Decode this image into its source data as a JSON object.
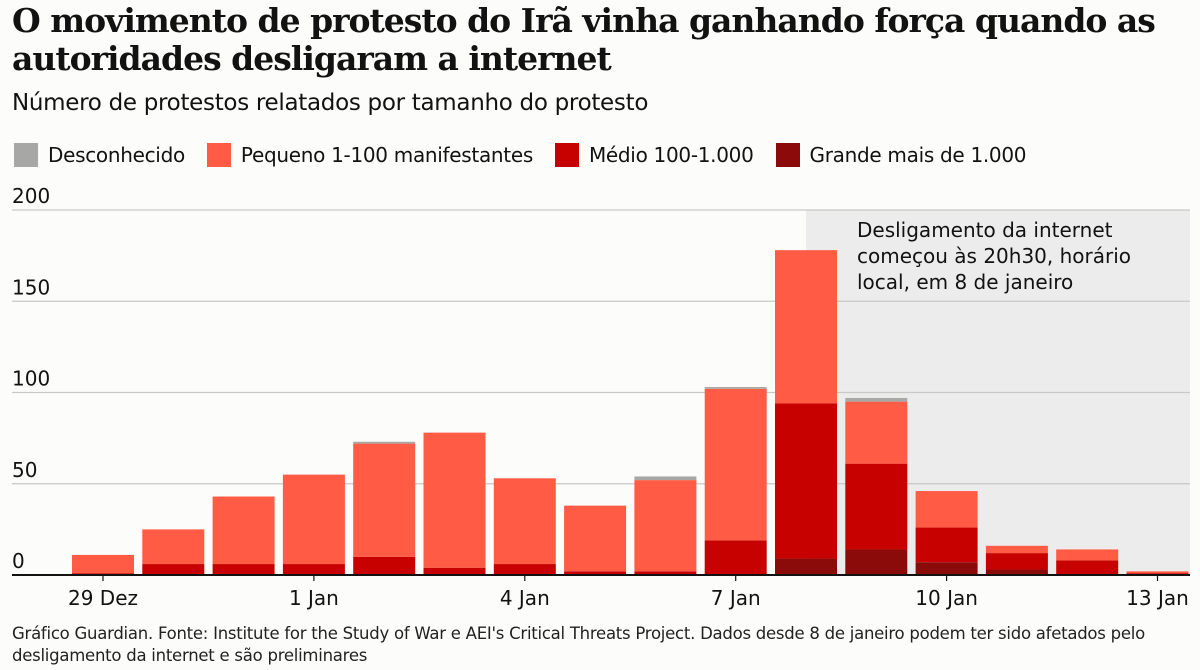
{
  "header": {
    "title": "O movimento de protesto do Irã vinha ganhando força quando as autoridades desligaram a internet",
    "subtitle": "Número de protestos relatados por tamanho do protesto"
  },
  "legend": [
    {
      "key": "desconhecido",
      "label": "Desconhecido",
      "color": "#a7a7a5"
    },
    {
      "key": "pequeno",
      "label": "Pequeno 1-100 manifestantes",
      "color": "#ff5b45"
    },
    {
      "key": "medio",
      "label": "Médio 100-1.000",
      "color": "#c70000"
    },
    {
      "key": "grande",
      "label": "Grande mais de 1.000",
      "color": "#8b0a0a"
    }
  ],
  "annotation": {
    "lines": [
      "Desligamento da internet",
      "começou às 20h30, horário",
      "local, em 8 de janeiro"
    ],
    "shade_color": "#ececec",
    "shade_start_day_index": 10.5
  },
  "source": "Gráfico Guardian. Fonte: Institute for the Study of War e AEI's Critical Threats Project. Dados desde 8 de janeiro podem ter sido afetados pelo desligamento da internet e são preliminares",
  "chart_data": {
    "type": "bar",
    "stacked": true,
    "title": "O movimento de protesto do Irã vinha ganhando força quando as autoridades desligaram a internet",
    "subtitle": "Número de protestos relatados por tamanho do protesto",
    "xlabel": "",
    "ylabel": "",
    "ylim": [
      0,
      200
    ],
    "yticks": [
      0,
      50,
      100,
      150,
      200
    ],
    "grid": true,
    "legend_position": "top-left",
    "categories": [
      "29 Dez",
      "30 Dez",
      "31 Dez",
      "1 Jan",
      "2 Jan",
      "3 Jan",
      "4 Jan",
      "5 Jan",
      "6 Jan",
      "7 Jan",
      "8 Jan",
      "9 Jan",
      "10 Jan",
      "11 Jan",
      "12 Jan",
      "13 Jan"
    ],
    "xtick_labels": [
      {
        "index": 0,
        "label": "29 Dez"
      },
      {
        "index": 3,
        "label": "1 Jan"
      },
      {
        "index": 6,
        "label": "4 Jan"
      },
      {
        "index": 9,
        "label": "7 Jan"
      },
      {
        "index": 12,
        "label": "10 Jan"
      },
      {
        "index": 15,
        "label": "13 Jan"
      }
    ],
    "series": [
      {
        "name": "Grande mais de 1.000",
        "key": "grande",
        "color": "#8b0a0a",
        "values": [
          0,
          0,
          0,
          0,
          0,
          0,
          0,
          0,
          0,
          0,
          9,
          14,
          7,
          3,
          0,
          0
        ]
      },
      {
        "name": "Médio 100-1.000",
        "key": "medio",
        "color": "#c70000",
        "values": [
          1,
          6,
          6,
          6,
          10,
          4,
          6,
          2,
          2,
          19,
          85,
          47,
          19,
          9,
          8,
          1
        ]
      },
      {
        "name": "Pequeno 1-100 manifestantes",
        "key": "pequeno",
        "color": "#ff5b45",
        "values": [
          10,
          19,
          37,
          49,
          62,
          74,
          47,
          36,
          50,
          83,
          84,
          34,
          20,
          4,
          6,
          1
        ]
      },
      {
        "name": "Desconhecido",
        "key": "desconhecido",
        "color": "#a7a7a5",
        "values": [
          0,
          0,
          0,
          0,
          1,
          0,
          0,
          0,
          2,
          1,
          0,
          2,
          0,
          0,
          0,
          0
        ]
      }
    ],
    "annotation": "Desligamento da internet começou às 20h30, horário local, em 8 de janeiro"
  }
}
